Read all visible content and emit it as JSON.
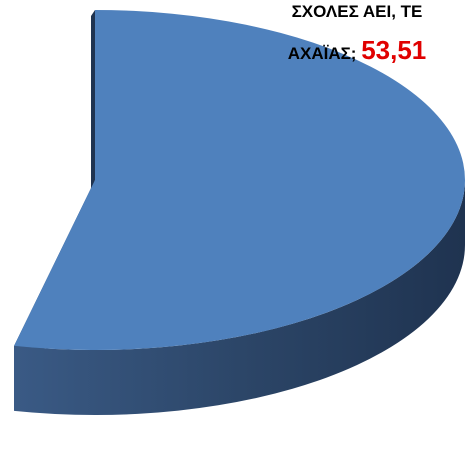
{
  "chart_data": {
    "type": "pie",
    "categories": [
      "ΣΧΟΛΕΣ ΑΕΙ, ΤΕ ΑΧΑΪΑΣ;"
    ],
    "values": [
      53.51
    ],
    "value_labels": [
      "53,51"
    ],
    "color": "#4f81bd"
  }
}
